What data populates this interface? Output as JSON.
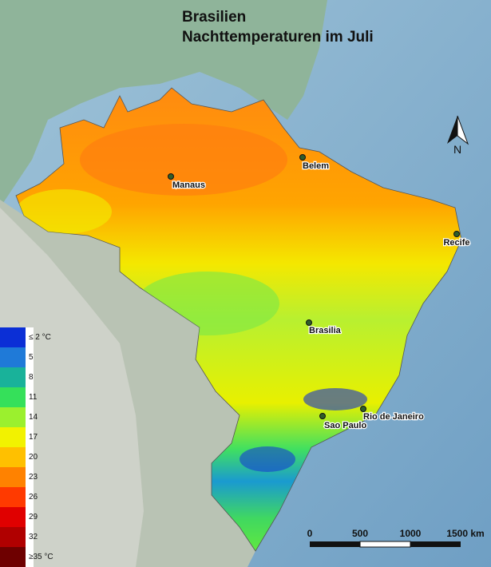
{
  "title": [
    "Brasilien",
    "Nachttemperaturen im Juli"
  ],
  "north": "N",
  "cities": [
    {
      "name": "Manaus"
    },
    {
      "name": "Belem"
    },
    {
      "name": "Recife"
    },
    {
      "name": "Brasilia"
    },
    {
      "name": "Sao Paulo"
    },
    {
      "name": "Rio de Janeiro"
    }
  ],
  "legend": [
    {
      "label": "≤ 2 °C",
      "color": "#0b2fd6"
    },
    {
      "label": "5",
      "color": "#1f7ad8"
    },
    {
      "label": "8",
      "color": "#19b29a"
    },
    {
      "label": "11",
      "color": "#35e05a"
    },
    {
      "label": "14",
      "color": "#9bf02e"
    },
    {
      "label": "17",
      "color": "#f2f200"
    },
    {
      "label": "20",
      "color": "#ffc000"
    },
    {
      "label": "23",
      "color": "#ff8200"
    },
    {
      "label": "26",
      "color": "#ff3a00"
    },
    {
      "label": "29",
      "color": "#e00000"
    },
    {
      "label": "32",
      "color": "#b00000"
    },
    {
      "label": "≥35 °C",
      "color": "#6e0000"
    }
  ],
  "scale": [
    "0",
    "500",
    "1000",
    "1500 km"
  ]
}
